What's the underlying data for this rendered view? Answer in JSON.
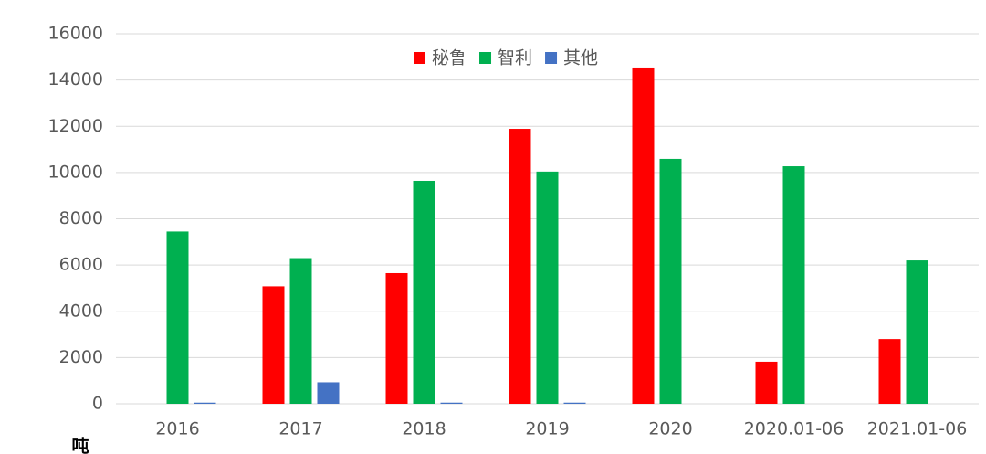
{
  "chart_data": {
    "type": "bar",
    "y_label": "吨",
    "categories": [
      "2016",
      "2017",
      "2018",
      "2019",
      "2020",
      "2020.01-06",
      "2021.01-06"
    ],
    "series": [
      {
        "name": "秘鲁",
        "color": "#ff0000",
        "values": [
          0,
          5080,
          5650,
          11890,
          14540,
          1820,
          2800
        ]
      },
      {
        "name": "智利",
        "color": "#00b050",
        "values": [
          7450,
          6300,
          9640,
          10040,
          10590,
          10270,
          6200
        ]
      },
      {
        "name": "其他",
        "color": "#4472c4",
        "values": [
          50,
          930,
          50,
          50,
          0,
          0,
          0
        ]
      }
    ],
    "ylim": [
      0,
      16000
    ],
    "yticks": [
      0,
      2000,
      4000,
      6000,
      8000,
      10000,
      12000,
      14000,
      16000
    ],
    "grid": true,
    "legend": "top"
  }
}
